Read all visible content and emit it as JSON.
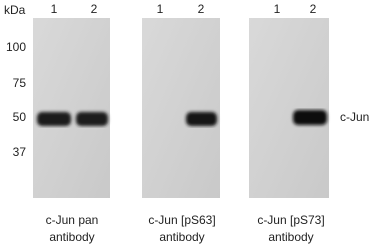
{
  "axis_label": "kDa",
  "markers": [
    "100",
    "75",
    "50",
    "37"
  ],
  "band_label": "c-Jun",
  "panels": [
    {
      "lanes": [
        "1",
        "2"
      ],
      "caption": [
        "c-Jun pan",
        "antibody"
      ]
    },
    {
      "lanes": [
        "1",
        "2"
      ],
      "caption": [
        "c-Jun [pS63]",
        "antibody"
      ]
    },
    {
      "lanes": [
        "1",
        "2"
      ],
      "caption": [
        "c-Jun [pS73]",
        "antibody"
      ]
    }
  ]
}
